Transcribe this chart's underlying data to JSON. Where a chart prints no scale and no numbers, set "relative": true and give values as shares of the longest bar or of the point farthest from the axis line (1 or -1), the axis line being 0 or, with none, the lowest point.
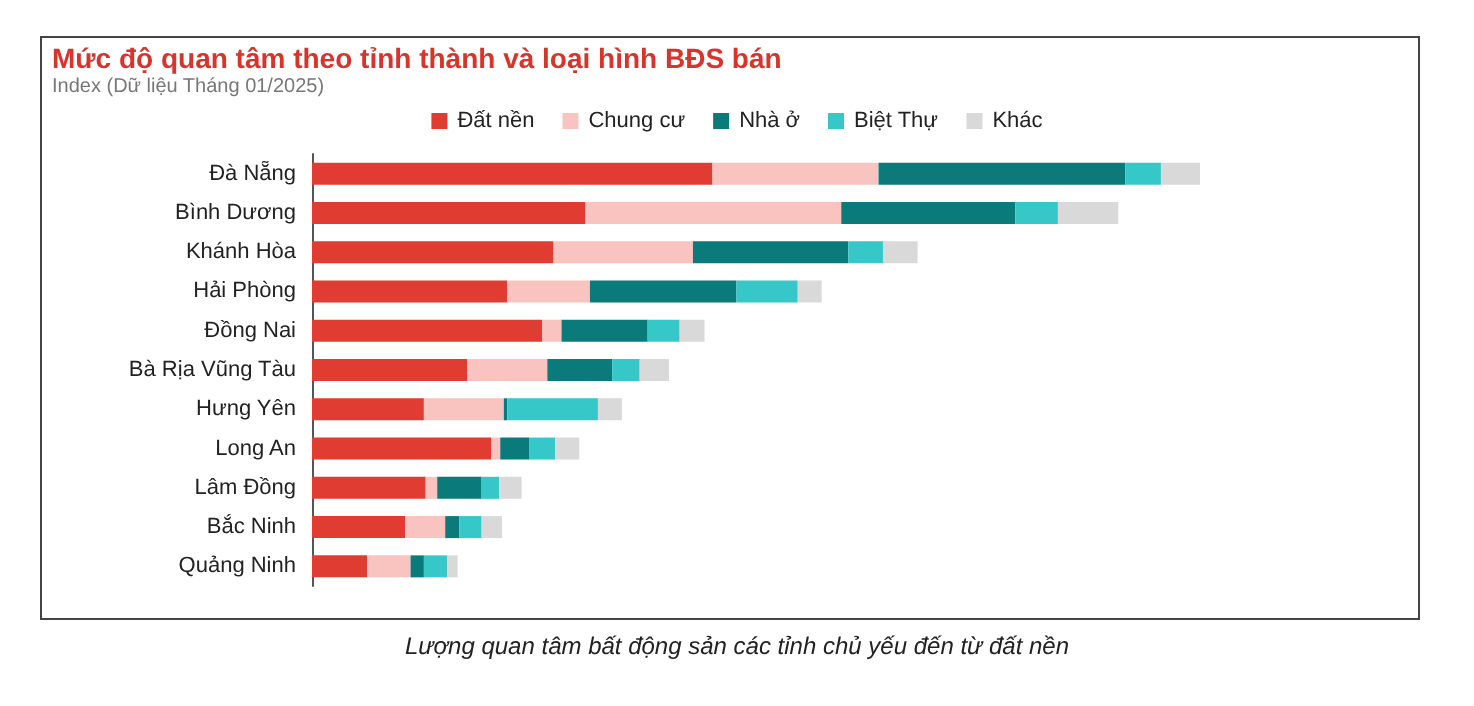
{
  "chart_data": {
    "type": "bar",
    "orientation": "horizontal",
    "stacked": true,
    "relative": true,
    "title": "Mức độ quan tâm theo tỉnh thành và loại hình BĐS bán",
    "subtitle": "Index (Dữ liệu Tháng 01/2025)",
    "annotations": [
      "Lượng quan tâm bất động sản các tỉnh chủ yếu đến từ đất nền"
    ],
    "legend": "top",
    "categories": [
      "Đà Nẵng",
      "Bình Dương",
      "Khánh Hòa",
      "Hải Phòng",
      "Đồng Nai",
      "Bà Rịa Vũng Tàu",
      "Hưng Yên",
      "Long An",
      "Lâm Đồng",
      "Bắc Ninh",
      "Quảng Ninh"
    ],
    "series": [
      {
        "name": "Đất nền",
        "color": "#e03c31",
        "values": [
          0.451,
          0.308,
          0.272,
          0.22,
          0.259,
          0.175,
          0.126,
          0.202,
          0.128,
          0.105,
          0.062
        ]
      },
      {
        "name": "Chung cư",
        "color": "#f9c4c0",
        "values": [
          0.187,
          0.288,
          0.157,
          0.093,
          0.022,
          0.09,
          0.09,
          0.01,
          0.013,
          0.045,
          0.049
        ]
      },
      {
        "name": "Nhà ở",
        "color": "#0b7a7a",
        "values": [
          0.278,
          0.196,
          0.175,
          0.165,
          0.097,
          0.073,
          0.004,
          0.033,
          0.05,
          0.016,
          0.015
        ]
      },
      {
        "name": "Biệt Thự",
        "color": "#36c8c8",
        "values": [
          0.04,
          0.048,
          0.039,
          0.069,
          0.036,
          0.031,
          0.102,
          0.029,
          0.02,
          0.025,
          0.026
        ]
      },
      {
        "name": "Khác",
        "color": "#d9d9d9",
        "values": [
          0.044,
          0.068,
          0.039,
          0.027,
          0.028,
          0.033,
          0.027,
          0.027,
          0.025,
          0.023,
          0.012
        ]
      }
    ]
  }
}
